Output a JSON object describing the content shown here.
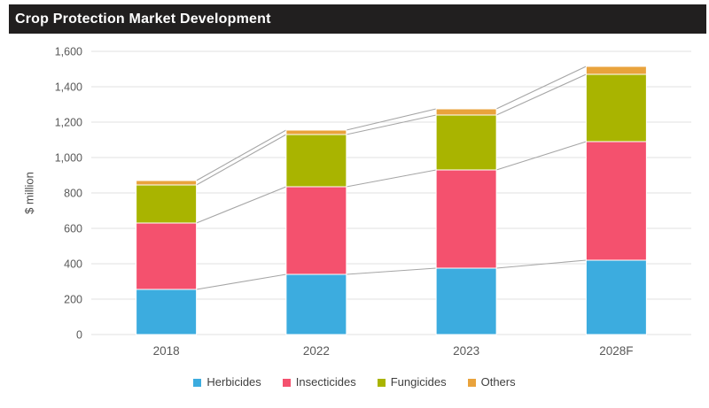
{
  "title": "Crop Protection Market Development",
  "chart_data": {
    "type": "bar",
    "stacked": true,
    "title": "Crop Protection Market Development",
    "xlabel": "",
    "ylabel": "$ million",
    "categories": [
      "2018",
      "2022",
      "2023",
      "2028F"
    ],
    "series": [
      {
        "name": "Herbicides",
        "color": "#3CACDF",
        "values": [
          255,
          340,
          375,
          420
        ]
      },
      {
        "name": "Insecticides",
        "color": "#F4516E",
        "values": [
          375,
          495,
          555,
          670
        ]
      },
      {
        "name": "Fungicides",
        "color": "#A9B400",
        "values": [
          215,
          295,
          310,
          380
        ]
      },
      {
        "name": "Others",
        "color": "#E9A33C",
        "values": [
          25,
          25,
          35,
          45
        ]
      }
    ],
    "totals": [
      870,
      1155,
      1275,
      1515
    ],
    "ylim": [
      0,
      1600
    ],
    "ytick_step": 200,
    "grid": true,
    "gridline_color": "#E0E0E0",
    "connector_lines": true,
    "connector_color": "#A6A6A6",
    "axis_text_color": "#595959",
    "legend_position": "bottom",
    "title_bar_color": "#211f1f"
  }
}
